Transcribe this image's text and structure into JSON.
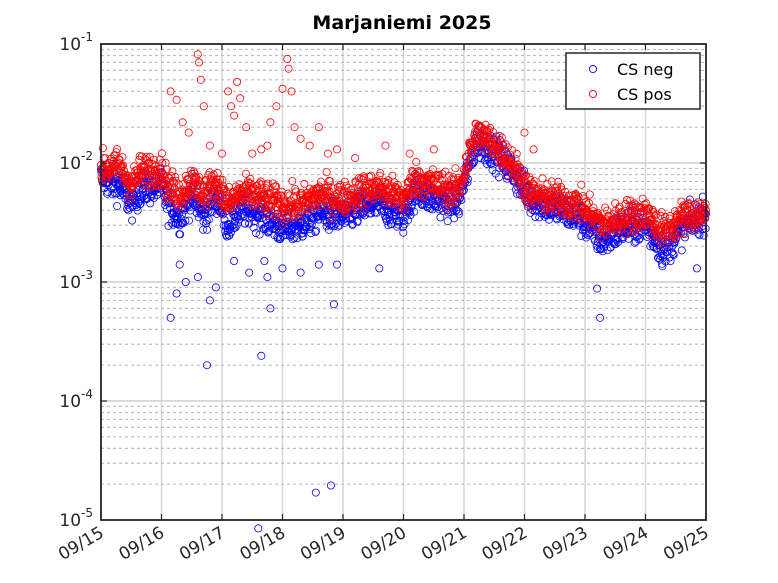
{
  "chart_data": {
    "type": "scatter",
    "title": "Marjaniemi 2025",
    "xlabel": "",
    "ylabel": "",
    "y_scale": "log",
    "ylim": [
      1e-05,
      0.1
    ],
    "xlim": [
      "09/15",
      "09/25"
    ],
    "x_ticks": [
      "09/15",
      "09/16",
      "09/17",
      "09/18",
      "09/19",
      "09/20",
      "09/21",
      "09/22",
      "09/23",
      "09/24",
      "09/25"
    ],
    "y_ticks": [
      {
        "value": 0.1,
        "base": "10",
        "exp": "-1"
      },
      {
        "value": 0.01,
        "base": "10",
        "exp": "-2"
      },
      {
        "value": 0.001,
        "base": "10",
        "exp": "-3"
      },
      {
        "value": 0.0001,
        "base": "10",
        "exp": "-4"
      },
      {
        "value": 1e-05,
        "base": "10",
        "exp": "-5"
      }
    ],
    "grid": true,
    "legend_position": "top-right",
    "series": [
      {
        "name": "CS neg",
        "color": "#0000ff",
        "marker": "circle-open",
        "baseline": [
          [
            0,
            0.0075
          ],
          [
            0.3,
            0.0065
          ],
          [
            0.5,
            0.0045
          ],
          [
            0.65,
            0.006
          ],
          [
            1.0,
            0.0065
          ],
          [
            1.1,
            0.0045
          ],
          [
            1.3,
            0.0035
          ],
          [
            1.5,
            0.0055
          ],
          [
            1.7,
            0.0035
          ],
          [
            1.9,
            0.0055
          ],
          [
            2.1,
            0.003
          ],
          [
            2.3,
            0.004
          ],
          [
            2.5,
            0.004
          ],
          [
            2.7,
            0.0035
          ],
          [
            3.0,
            0.0028
          ],
          [
            3.3,
            0.003
          ],
          [
            3.6,
            0.0038
          ],
          [
            4.0,
            0.0035
          ],
          [
            4.3,
            0.0042
          ],
          [
            4.6,
            0.0045
          ],
          [
            5.0,
            0.0035
          ],
          [
            5.2,
            0.006
          ],
          [
            5.5,
            0.005
          ],
          [
            5.9,
            0.0045
          ],
          [
            6.2,
            0.015
          ],
          [
            6.5,
            0.0125
          ],
          [
            6.8,
            0.0085
          ],
          [
            7.1,
            0.005
          ],
          [
            7.5,
            0.0042
          ],
          [
            7.9,
            0.0035
          ],
          [
            8.3,
            0.0022
          ],
          [
            8.6,
            0.0028
          ],
          [
            9.0,
            0.003
          ],
          [
            9.3,
            0.0018
          ],
          [
            9.6,
            0.0028
          ],
          [
            10.0,
            0.0038
          ]
        ],
        "outliers": [
          [
            1.15,
            0.0005
          ],
          [
            1.25,
            0.0008
          ],
          [
            1.3,
            0.0014
          ],
          [
            1.4,
            0.001
          ],
          [
            1.6,
            0.0011
          ],
          [
            1.75,
            0.0002
          ],
          [
            1.8,
            0.0007
          ],
          [
            1.9,
            0.0009
          ],
          [
            2.2,
            0.0015
          ],
          [
            2.45,
            0.0012
          ],
          [
            2.6,
            8.5e-06
          ],
          [
            2.65,
            0.00024
          ],
          [
            2.7,
            0.0015
          ],
          [
            2.75,
            0.0011
          ],
          [
            2.8,
            0.0006
          ],
          [
            3.0,
            0.0013
          ],
          [
            3.3,
            0.0012
          ],
          [
            3.55,
            1.7e-05
          ],
          [
            3.6,
            0.0014
          ],
          [
            3.8,
            1.95e-05
          ],
          [
            3.85,
            0.00065
          ],
          [
            3.9,
            0.0014
          ],
          [
            4.6,
            0.0013
          ],
          [
            8.2,
            0.00088
          ],
          [
            8.25,
            0.0005
          ],
          [
            9.85,
            0.0013
          ]
        ]
      },
      {
        "name": "CS pos",
        "color": "#ff0000",
        "marker": "circle-open",
        "baseline": [
          [
            0,
            0.009
          ],
          [
            0.3,
            0.0095
          ],
          [
            0.5,
            0.0065
          ],
          [
            0.65,
            0.0085
          ],
          [
            1.0,
            0.009
          ],
          [
            1.1,
            0.0065
          ],
          [
            1.3,
            0.0055
          ],
          [
            1.5,
            0.007
          ],
          [
            1.7,
            0.0055
          ],
          [
            1.9,
            0.007
          ],
          [
            2.1,
            0.0045
          ],
          [
            2.3,
            0.0055
          ],
          [
            2.5,
            0.0055
          ],
          [
            2.7,
            0.005
          ],
          [
            3.0,
            0.0045
          ],
          [
            3.3,
            0.0045
          ],
          [
            3.6,
            0.0055
          ],
          [
            4.0,
            0.005
          ],
          [
            4.3,
            0.0058
          ],
          [
            4.6,
            0.0062
          ],
          [
            5.0,
            0.005
          ],
          [
            5.2,
            0.0075
          ],
          [
            5.5,
            0.0065
          ],
          [
            5.9,
            0.0058
          ],
          [
            6.2,
            0.018
          ],
          [
            6.5,
            0.0145
          ],
          [
            6.8,
            0.01
          ],
          [
            7.1,
            0.0055
          ],
          [
            7.5,
            0.005
          ],
          [
            7.9,
            0.0045
          ],
          [
            8.3,
            0.003
          ],
          [
            8.6,
            0.0035
          ],
          [
            9.0,
            0.0038
          ],
          [
            9.3,
            0.0026
          ],
          [
            9.6,
            0.0035
          ],
          [
            10.0,
            0.0038
          ]
        ],
        "outliers": [
          [
            1.15,
            0.04
          ],
          [
            1.25,
            0.034
          ],
          [
            1.35,
            0.022
          ],
          [
            1.45,
            0.018
          ],
          [
            1.6,
            0.082
          ],
          [
            1.62,
            0.07
          ],
          [
            1.65,
            0.05
          ],
          [
            1.7,
            0.03
          ],
          [
            1.8,
            0.014
          ],
          [
            2.0,
            0.012
          ],
          [
            2.1,
            0.04
          ],
          [
            2.15,
            0.03
          ],
          [
            2.2,
            0.025
          ],
          [
            2.25,
            0.048
          ],
          [
            2.3,
            0.035
          ],
          [
            2.4,
            0.02
          ],
          [
            2.5,
            0.012
          ],
          [
            2.65,
            0.013
          ],
          [
            2.75,
            0.014
          ],
          [
            2.8,
            0.022
          ],
          [
            2.9,
            0.03
          ],
          [
            3.0,
            0.042
          ],
          [
            3.08,
            0.075
          ],
          [
            3.1,
            0.062
          ],
          [
            3.15,
            0.04
          ],
          [
            3.2,
            0.02
          ],
          [
            3.3,
            0.016
          ],
          [
            3.45,
            0.014
          ],
          [
            3.6,
            0.02
          ],
          [
            3.75,
            0.012
          ],
          [
            3.9,
            0.013
          ],
          [
            4.2,
            0.011
          ],
          [
            4.7,
            0.014
          ],
          [
            5.1,
            0.012
          ],
          [
            5.5,
            0.013
          ],
          [
            7.0,
            0.018
          ],
          [
            7.15,
            0.013
          ]
        ]
      }
    ]
  }
}
